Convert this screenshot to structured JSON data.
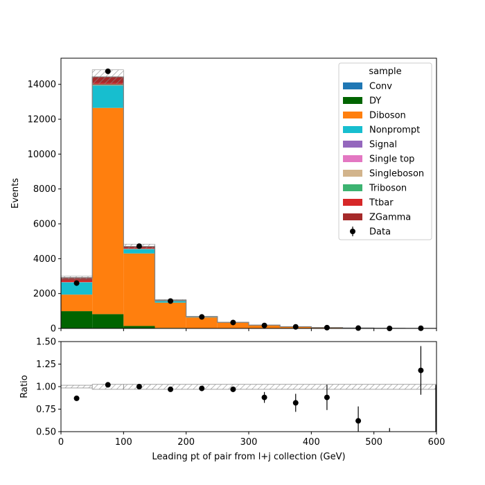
{
  "chart_data": [
    {
      "type": "bar",
      "stacked": true,
      "xlabel": "",
      "ylabel": "Events",
      "xlim": [
        0,
        600
      ],
      "ylim": [
        0,
        15500
      ],
      "yticks": [
        0,
        2000,
        4000,
        6000,
        8000,
        10000,
        12000,
        14000
      ],
      "bin_edges": [
        0,
        50,
        100,
        150,
        200,
        250,
        300,
        350,
        400,
        450,
        500,
        550,
        600
      ],
      "legend": {
        "title": "sample",
        "position": "top-right"
      },
      "series": [
        {
          "name": "Conv",
          "color": "#1f77b4",
          "values": [
            0,
            0,
            0,
            0,
            0,
            0,
            0,
            0,
            0,
            0,
            0,
            0
          ]
        },
        {
          "name": "DY",
          "color": "#006400",
          "values": [
            990,
            820,
            140,
            30,
            10,
            5,
            2,
            1,
            0,
            0,
            0,
            0
          ]
        },
        {
          "name": "Diboson",
          "color": "#ff7f0e",
          "values": [
            950,
            11830,
            4160,
            1450,
            620,
            330,
            180,
            95,
            50,
            25,
            12,
            8
          ]
        },
        {
          "name": "Nonprompt",
          "color": "#17becf",
          "values": [
            700,
            1280,
            240,
            90,
            30,
            10,
            5,
            3,
            1,
            1,
            0,
            0
          ]
        },
        {
          "name": "Signal",
          "color": "#9467bd",
          "values": [
            0,
            0,
            0,
            0,
            0,
            0,
            0,
            0,
            0,
            0,
            0,
            0
          ]
        },
        {
          "name": "Single top",
          "color": "#e377c2",
          "values": [
            5,
            10,
            5,
            2,
            1,
            0,
            0,
            0,
            0,
            0,
            0,
            0
          ]
        },
        {
          "name": "Singleboson",
          "color": "#d2b48c",
          "values": [
            5,
            10,
            5,
            2,
            1,
            0,
            0,
            0,
            0,
            0,
            0,
            0
          ]
        },
        {
          "name": "Triboson",
          "color": "#3cb371",
          "values": [
            5,
            30,
            20,
            10,
            5,
            3,
            2,
            1,
            1,
            0,
            0,
            0
          ]
        },
        {
          "name": "Ttbar",
          "color": "#d62728",
          "values": [
            90,
            110,
            40,
            10,
            3,
            1,
            0,
            0,
            0,
            0,
            0,
            0
          ]
        },
        {
          "name": "ZGamma",
          "color": "#a52a2a",
          "values": [
            165,
            340,
            90,
            20,
            5,
            2,
            1,
            0,
            0,
            0,
            0,
            0
          ]
        }
      ],
      "uncertainty_frac": 0.028,
      "data": {
        "name": "Data",
        "x": [
          25,
          75,
          125,
          175,
          225,
          275,
          325,
          375,
          425,
          475,
          525,
          575
        ],
        "y": [
          2600,
          14750,
          4720,
          1570,
          660,
          340,
          170,
          90,
          45,
          18,
          0,
          10
        ]
      }
    },
    {
      "type": "scatter",
      "xlabel": "Leading pt of pair from l+j collection (GeV)",
      "ylabel": "Ratio",
      "xlim": [
        0,
        600
      ],
      "ylim": [
        0.5,
        1.5
      ],
      "xticks": [
        0,
        100,
        200,
        300,
        400,
        500,
        600
      ],
      "yticks": [
        "0.50",
        "0.75",
        "1.00",
        "1.25",
        "1.50"
      ],
      "uncertainty_band": {
        "bins": [
          0,
          50,
          100,
          600
        ],
        "low": [
          0.985,
          0.97,
          0.97
        ],
        "high": [
          1.015,
          1.025,
          1.025
        ]
      },
      "points": {
        "x": [
          25,
          75,
          125,
          175,
          225,
          275,
          325,
          375,
          425,
          475,
          575
        ],
        "y": [
          0.87,
          1.02,
          1.0,
          0.97,
          0.98,
          0.97,
          0.88,
          0.82,
          0.88,
          0.62,
          1.18
        ],
        "err": [
          0.0,
          0.0,
          0.0,
          0.0,
          0.02,
          0.03,
          0.06,
          0.1,
          0.14,
          0.16,
          0.27
        ]
      }
    }
  ]
}
